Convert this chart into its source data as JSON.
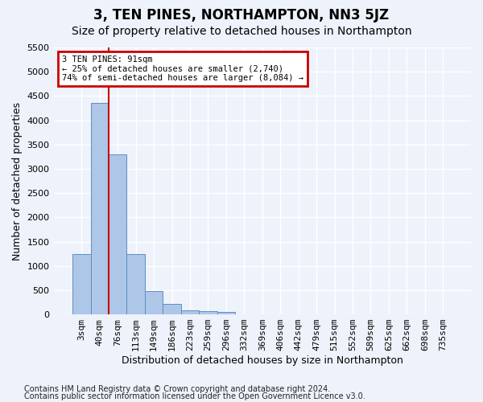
{
  "title": "3, TEN PINES, NORTHAMPTON, NN3 5JZ",
  "subtitle": "Size of property relative to detached houses in Northampton",
  "xlabel": "Distribution of detached houses by size in Northampton",
  "ylabel": "Number of detached properties",
  "bar_values": [
    1250,
    4350,
    3300,
    1250,
    480,
    210,
    85,
    60,
    55,
    0,
    0,
    0,
    0,
    0,
    0,
    0,
    0,
    0,
    0,
    0,
    0
  ],
  "bin_labels": [
    "3sqm",
    "40sqm",
    "76sqm",
    "113sqm",
    "149sqm",
    "186sqm",
    "223sqm",
    "259sqm",
    "296sqm",
    "332sqm",
    "369sqm",
    "406sqm",
    "442sqm",
    "479sqm",
    "515sqm",
    "552sqm",
    "589sqm",
    "625sqm",
    "662sqm",
    "698sqm",
    "735sqm"
  ],
  "bar_color": "#aec6e8",
  "bar_edge_color": "#5a8fc2",
  "red_line_index": 2,
  "annotation_text": "3 TEN PINES: 91sqm\n← 25% of detached houses are smaller (2,740)\n74% of semi-detached houses are larger (8,084) →",
  "annotation_box_color": "#ffffff",
  "annotation_box_edge": "#cc0000",
  "ylim_max": 5500,
  "yticks": [
    0,
    500,
    1000,
    1500,
    2000,
    2500,
    3000,
    3500,
    4000,
    4500,
    5000,
    5500
  ],
  "footer1": "Contains HM Land Registry data © Crown copyright and database right 2024.",
  "footer2": "Contains public sector information licensed under the Open Government Licence v3.0.",
  "background_color": "#eef2fb",
  "grid_color": "#ffffff",
  "title_fontsize": 12,
  "subtitle_fontsize": 10,
  "axis_label_fontsize": 9,
  "tick_fontsize": 8,
  "footer_fontsize": 7
}
